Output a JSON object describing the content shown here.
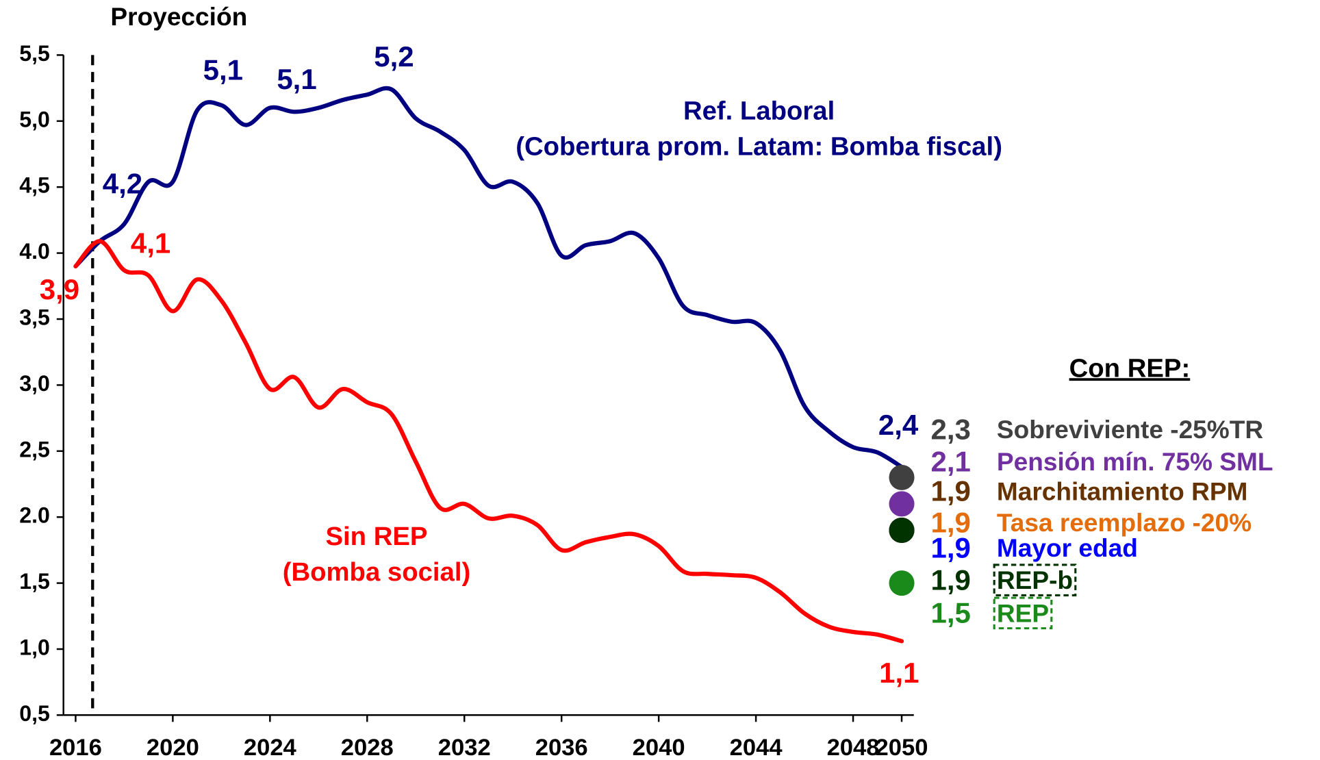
{
  "chart_data": {
    "type": "line",
    "x": [
      2016,
      2017,
      2018,
      2019,
      2020,
      2021,
      2022,
      2023,
      2024,
      2025,
      2026,
      2027,
      2028,
      2029,
      2030,
      2031,
      2032,
      2033,
      2034,
      2035,
      2036,
      2037,
      2038,
      2039,
      2040,
      2041,
      2042,
      2043,
      2044,
      2045,
      2046,
      2047,
      2048,
      2049,
      2050
    ],
    "series": [
      {
        "name": "Ref. Laboral",
        "description": "(Cobertura prom. Latam: Bomba fiscal)",
        "color": "#000080",
        "values": [
          3.9,
          4.09,
          4.22,
          4.54,
          4.54,
          5.08,
          5.12,
          4.97,
          5.1,
          5.07,
          5.1,
          5.16,
          5.2,
          5.24,
          5.02,
          4.92,
          4.78,
          4.51,
          4.54,
          4.38,
          3.98,
          4.06,
          4.09,
          4.15,
          3.96,
          3.6,
          3.53,
          3.48,
          3.47,
          3.26,
          2.84,
          2.65,
          2.53,
          2.49,
          2.38
        ],
        "value_labels": [
          null,
          null,
          "4,2",
          null,
          null,
          null,
          "5,1",
          null,
          null,
          "5,1",
          null,
          null,
          null,
          "5,2",
          null,
          null,
          null,
          null,
          null,
          null,
          null,
          null,
          null,
          null,
          null,
          null,
          null,
          null,
          null,
          null,
          null,
          null,
          null,
          null,
          "2,4"
        ]
      },
      {
        "name": "Sin REP",
        "description": "(Bomba social)",
        "color": "#ff0000",
        "values": [
          3.9,
          4.09,
          3.87,
          3.83,
          3.56,
          3.8,
          3.64,
          3.32,
          2.97,
          3.06,
          2.83,
          2.97,
          2.87,
          2.78,
          2.42,
          2.07,
          2.1,
          1.99,
          2.01,
          1.94,
          1.75,
          1.81,
          1.85,
          1.87,
          1.78,
          1.59,
          1.57,
          1.56,
          1.54,
          1.43,
          1.27,
          1.17,
          1.13,
          1.11,
          1.06
        ],
        "value_labels": [
          "3,9",
          "4,1",
          null,
          null,
          null,
          null,
          null,
          null,
          null,
          null,
          null,
          null,
          null,
          null,
          null,
          null,
          null,
          null,
          null,
          null,
          null,
          null,
          null,
          null,
          null,
          null,
          null,
          null,
          null,
          null,
          null,
          null,
          null,
          null,
          "1,1"
        ]
      }
    ],
    "projection_line": {
      "x": 2016.7,
      "label": "Proyección"
    },
    "scenarios_title": "Con REP:",
    "scenarios_x": 2050,
    "scenarios": [
      {
        "name": "Sobreviviente -25%TR",
        "value": 2.3,
        "value_label": "2,3",
        "color": "#404040"
      },
      {
        "name": "Pensión mín. 75% SML",
        "value": 2.1,
        "value_label": "2,1",
        "color": "#7030a0"
      },
      {
        "name": "Tasa reemplazo -20%",
        "value": 1.9,
        "value_label": "1,9",
        "color": "#e46c0a"
      },
      {
        "name": "Mayor edad",
        "value": 1.9,
        "value_label": "1,9",
        "color": "#0000ff"
      },
      {
        "name": "Marchitamiento RPM",
        "value": 1.9,
        "value_label": "1,9",
        "color": "#663300"
      },
      {
        "name": "REP-b",
        "value": 1.9,
        "value_label": "1,9",
        "color": "#003300",
        "boxed": true
      },
      {
        "name": "REP",
        "value": 1.5,
        "value_label": "1,5",
        "color": "#1a8a1a",
        "boxed": true
      }
    ],
    "xlim": [
      2015.5,
      2050.5
    ],
    "xticks": [
      2016,
      2020,
      2024,
      2028,
      2032,
      2036,
      2040,
      2044,
      2048,
      2050
    ],
    "ylim": [
      0.5,
      5.5
    ],
    "yticks": [
      {
        "value": 0.5,
        "label": "0,5"
      },
      {
        "value": 1.0,
        "label": "1,0"
      },
      {
        "value": 1.5,
        "label": "1,5"
      },
      {
        "value": 2.0,
        "label": "2.0"
      },
      {
        "value": 2.5,
        "label": "2,5"
      },
      {
        "value": 3.0,
        "label": "3,0"
      },
      {
        "value": 3.5,
        "label": "3,5"
      },
      {
        "value": 4.0,
        "label": "4.0"
      },
      {
        "value": 4.5,
        "label": "4,5"
      },
      {
        "value": 5.0,
        "label": "5,0"
      },
      {
        "value": 5.5,
        "label": "5,5"
      }
    ],
    "grid": false
  }
}
